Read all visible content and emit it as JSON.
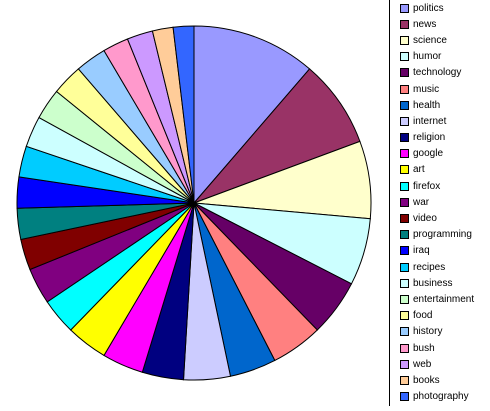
{
  "chart_data": {
    "type": "pie",
    "title": "",
    "legend_position": "right",
    "start_angle_deg": 0,
    "direction": "clockwise",
    "slices": [
      {
        "label": "politics",
        "value": 12,
        "color": "#9999ff"
      },
      {
        "label": "news",
        "value": 8.5,
        "color": "#993366"
      },
      {
        "label": "science",
        "value": 7.5,
        "color": "#ffffcc"
      },
      {
        "label": "humor",
        "value": 6.5,
        "color": "#ccffff"
      },
      {
        "label": "technology",
        "value": 5.5,
        "color": "#660066"
      },
      {
        "label": "music",
        "value": 5,
        "color": "#ff8080"
      },
      {
        "label": "health",
        "value": 4.5,
        "color": "#0066cc"
      },
      {
        "label": "internet",
        "value": 4.5,
        "color": "#ccccff"
      },
      {
        "label": "religion",
        "value": 4,
        "color": "#000080"
      },
      {
        "label": "google",
        "value": 4,
        "color": "#ff00ff"
      },
      {
        "label": "art",
        "value": 4,
        "color": "#ffff00"
      },
      {
        "label": "firefox",
        "value": 3.5,
        "color": "#00ffff"
      },
      {
        "label": "war",
        "value": 3.5,
        "color": "#800080"
      },
      {
        "label": "video",
        "value": 3,
        "color": "#800000"
      },
      {
        "label": "programming",
        "value": 3,
        "color": "#008080"
      },
      {
        "label": "iraq",
        "value": 3,
        "color": "#0000ff"
      },
      {
        "label": "recipes",
        "value": 3,
        "color": "#00ccff"
      },
      {
        "label": "business",
        "value": 3,
        "color": "#ccffff"
      },
      {
        "label": "entertainment",
        "value": 3,
        "color": "#ccffcc"
      },
      {
        "label": "food",
        "value": 3,
        "color": "#ffff99"
      },
      {
        "label": "history",
        "value": 3,
        "color": "#99ccff"
      },
      {
        "label": "bush",
        "value": 2.5,
        "color": "#ff99cc"
      },
      {
        "label": "web",
        "value": 2.5,
        "color": "#cc99ff"
      },
      {
        "label": "books",
        "value": 2,
        "color": "#ffcc99"
      },
      {
        "label": "photography",
        "value": 2,
        "color": "#3366ff"
      }
    ]
  }
}
